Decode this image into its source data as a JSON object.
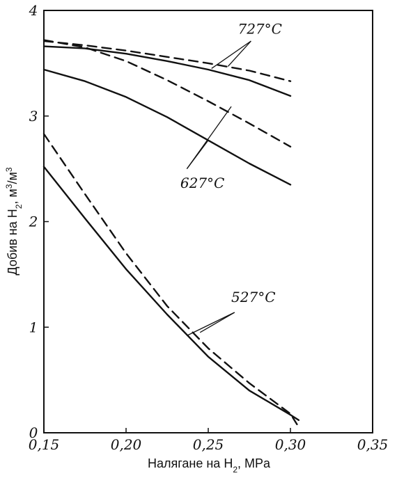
{
  "chart_data": {
    "type": "line",
    "xlabel": "Налягане на H",
    "xlabel_sub": "2",
    "xlabel_unit": ", MPa",
    "ylabel": "Добив на H",
    "ylabel_sub": "2",
    "ylabel_unit": ", м",
    "ylabel_sup1": "3",
    "ylabel_mid": "/м",
    "ylabel_sup2": "3",
    "xlim": [
      0.15,
      0.35
    ],
    "ylim": [
      0,
      4
    ],
    "xticks": [
      {
        "value": 0.15,
        "label": "0,15"
      },
      {
        "value": 0.2,
        "label": "0,20"
      },
      {
        "value": 0.25,
        "label": "0,25"
      },
      {
        "value": 0.3,
        "label": "0,30"
      },
      {
        "value": 0.35,
        "label": "0,35"
      }
    ],
    "yticks": [
      {
        "value": 0,
        "label": "0"
      },
      {
        "value": 1,
        "label": "1"
      },
      {
        "value": 2,
        "label": "2"
      },
      {
        "value": 3,
        "label": "3"
      },
      {
        "value": 4,
        "label": "4"
      }
    ],
    "grid": false,
    "series": [
      {
        "style": "solid",
        "group": "727",
        "x": [
          0.15,
          0.175,
          0.2,
          0.225,
          0.25,
          0.275,
          0.3
        ],
        "y": [
          3.66,
          3.64,
          3.59,
          3.52,
          3.44,
          3.34,
          3.19
        ]
      },
      {
        "style": "dashed",
        "group": "727",
        "x": [
          0.15,
          0.175,
          0.2,
          0.225,
          0.25,
          0.275,
          0.3
        ],
        "y": [
          3.71,
          3.67,
          3.62,
          3.56,
          3.5,
          3.43,
          3.33
        ]
      },
      {
        "style": "solid",
        "group": "627",
        "x": [
          0.15,
          0.175,
          0.2,
          0.225,
          0.25,
          0.275,
          0.3
        ],
        "y": [
          3.44,
          3.33,
          3.18,
          2.99,
          2.77,
          2.55,
          2.35
        ]
      },
      {
        "style": "dashed",
        "group": "627",
        "x": [
          0.15,
          0.175,
          0.2,
          0.225,
          0.25,
          0.275,
          0.3
        ],
        "y": [
          3.72,
          3.65,
          3.52,
          3.34,
          3.14,
          2.93,
          2.71
        ]
      },
      {
        "style": "solid",
        "group": "527",
        "x": [
          0.15,
          0.175,
          0.2,
          0.225,
          0.25,
          0.275,
          0.3,
          0.305
        ],
        "y": [
          2.52,
          2.03,
          1.55,
          1.12,
          0.72,
          0.4,
          0.17,
          0.12
        ]
      },
      {
        "style": "dashed",
        "group": "527",
        "x": [
          0.15,
          0.175,
          0.2,
          0.225,
          0.25,
          0.275,
          0.3,
          0.304
        ],
        "y": [
          2.83,
          2.26,
          1.7,
          1.2,
          0.8,
          0.47,
          0.18,
          0.08
        ]
      }
    ],
    "annotations": [
      {
        "text": "727°C",
        "group": "727"
      },
      {
        "text": "627°C",
        "group": "627"
      },
      {
        "text": "527°C",
        "group": "527"
      }
    ]
  }
}
